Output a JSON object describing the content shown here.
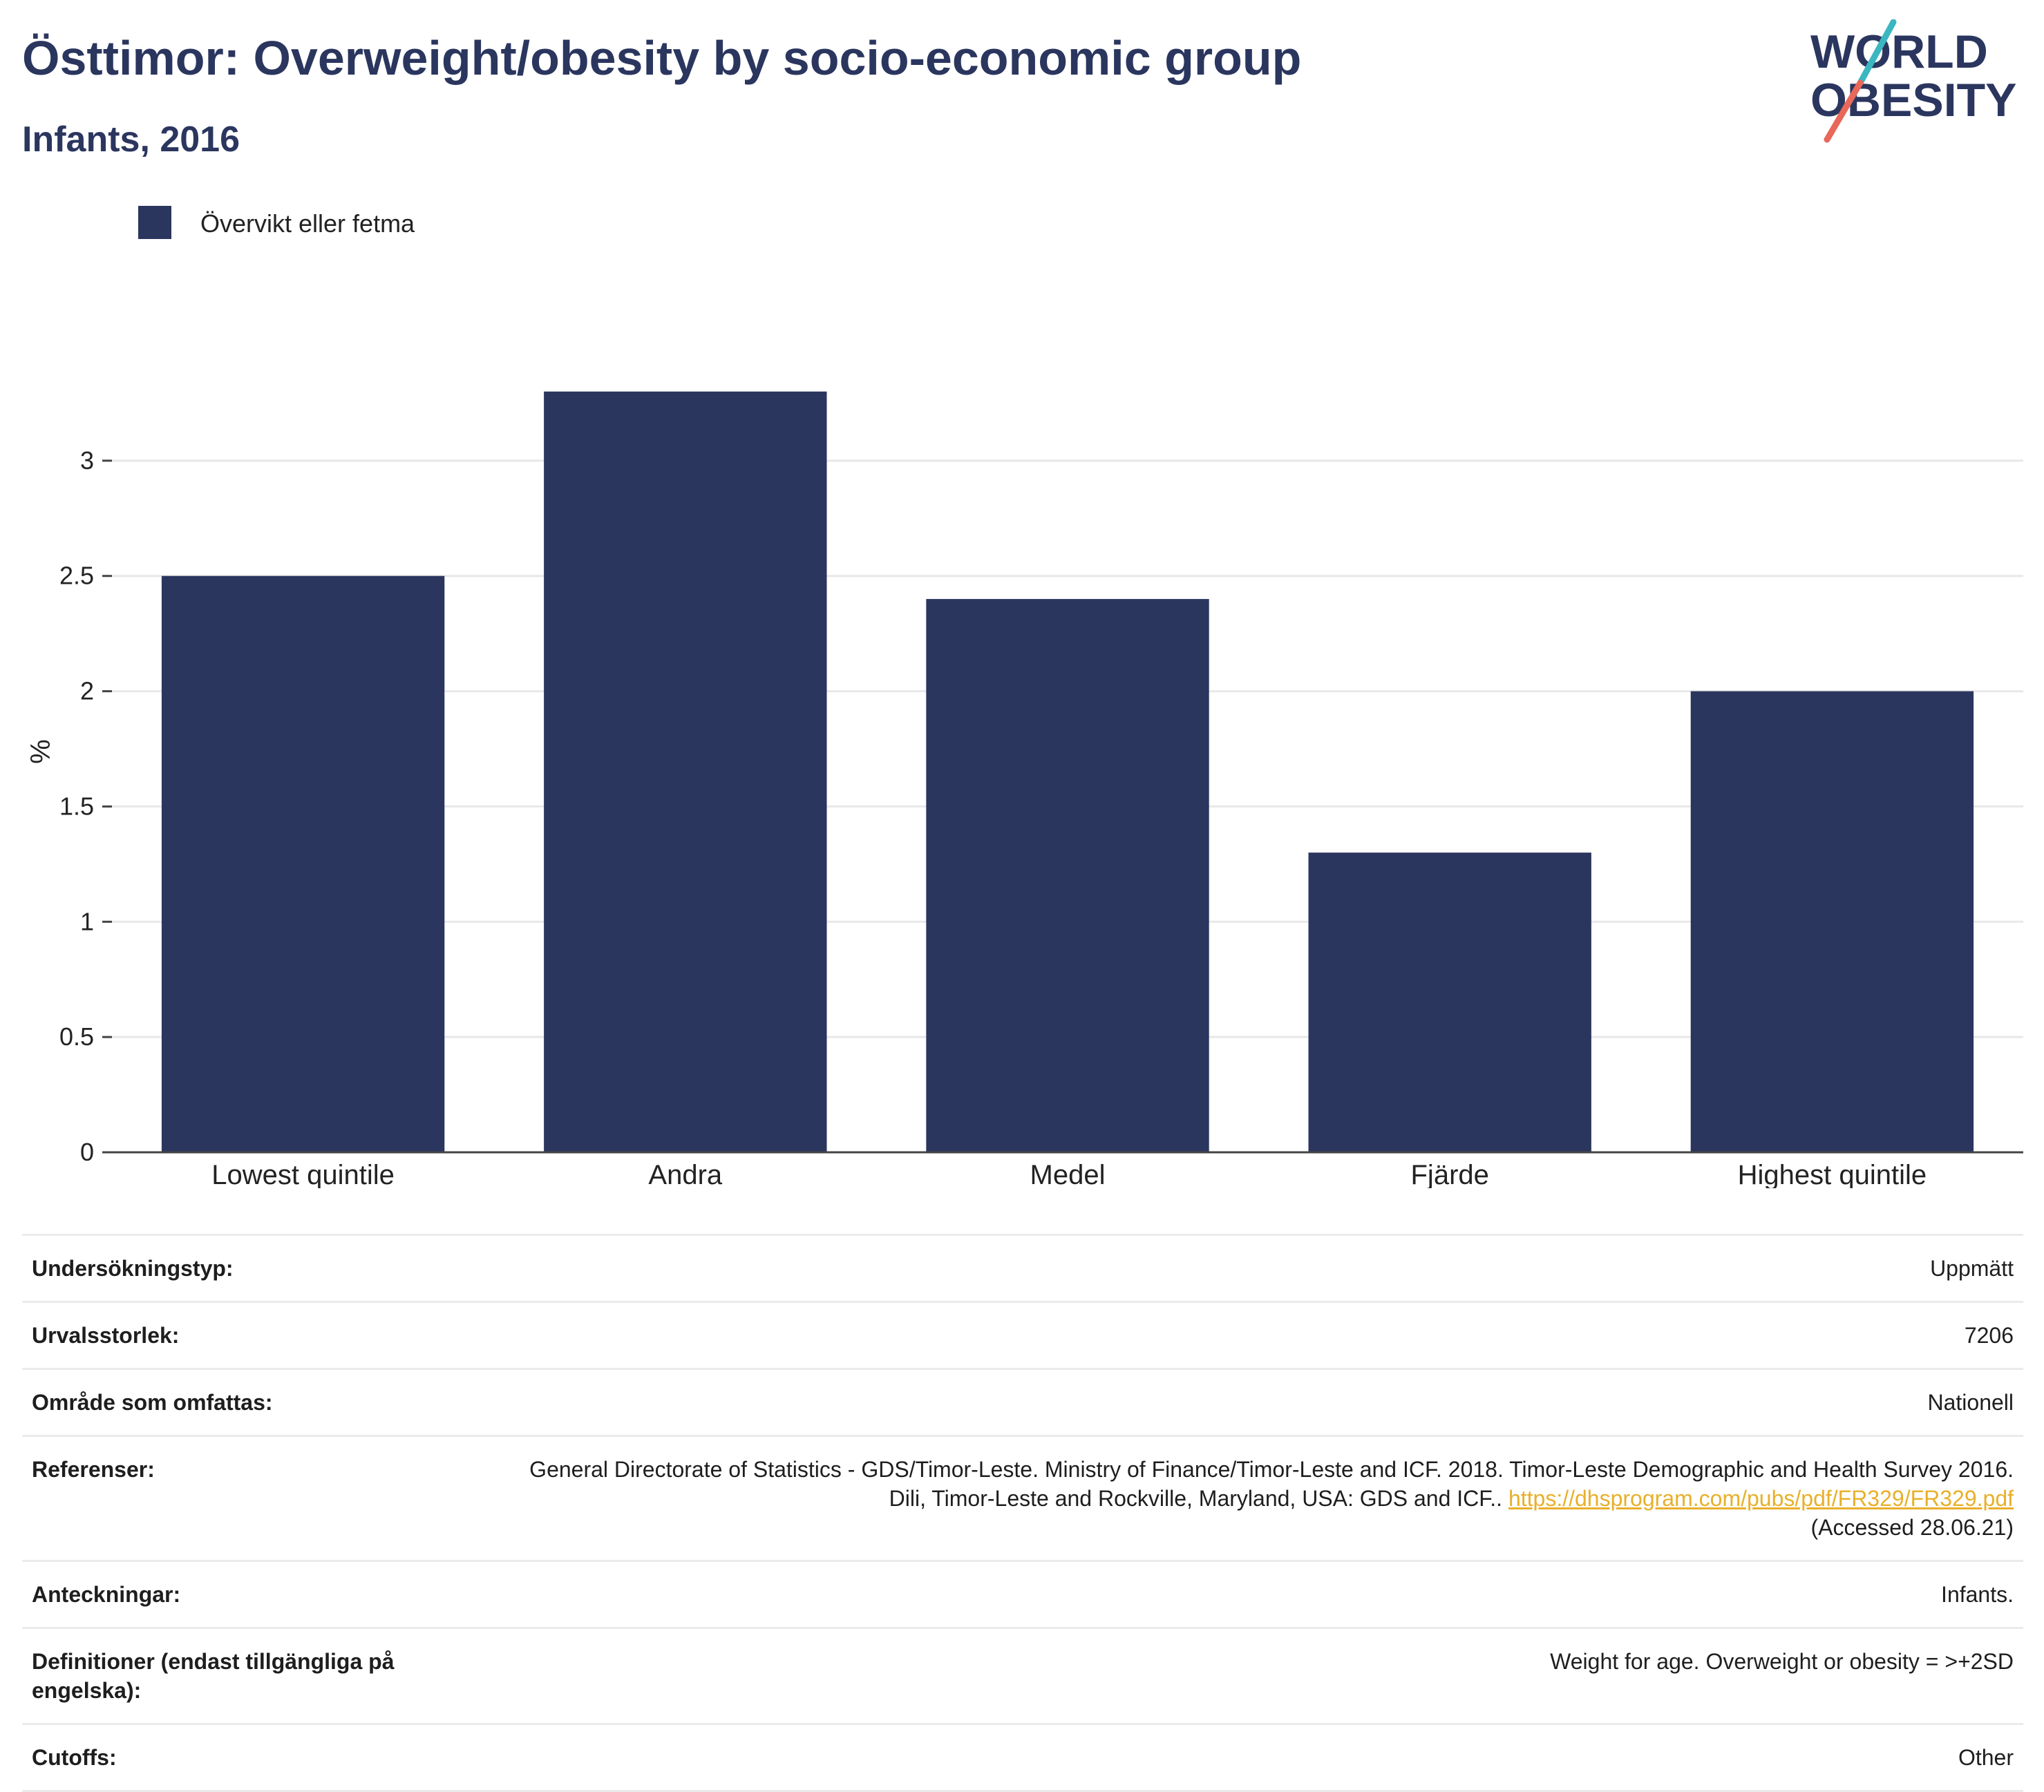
{
  "header": {
    "title": "Östtimor: Overweight/obesity by socio-economic group",
    "subtitle": "Infants, 2016"
  },
  "logo": {
    "line1": "WORLD",
    "line2": "OBESITY",
    "colors": {
      "text": "#2b365f",
      "slash_top": "#3bb7c1",
      "slash_bottom": "#e8685a"
    }
  },
  "chart_data": {
    "type": "bar",
    "categories": [
      "Lowest quintile",
      "Andra",
      "Medel",
      "Fjärde",
      "Highest quintile"
    ],
    "series": [
      {
        "name": "Övervikt eller fetma",
        "values": [
          2.5,
          3.3,
          2.4,
          1.3,
          2.0
        ],
        "color": "#2b365f"
      }
    ],
    "ylabel": "%",
    "ylim": [
      0,
      3.5
    ],
    "yticks": [
      0,
      0.5,
      1,
      1.5,
      2,
      2.5,
      3
    ],
    "ytick_labels": [
      "0",
      "0.5",
      "1",
      "1.5",
      "2",
      "2.5",
      "3"
    ],
    "grid": true,
    "legend": "top-left"
  },
  "meta": {
    "survey_type": {
      "label": "Undersökningstyp:",
      "value": "Uppmätt"
    },
    "sample_size": {
      "label": "Urvalsstorlek:",
      "value": "7206"
    },
    "coverage": {
      "label": "Område som omfattas:",
      "value": "Nationell"
    },
    "references": {
      "label": "Referenser:",
      "text": "General Directorate of Statistics - GDS/Timor-Leste. Ministry of Finance/Timor-Leste and ICF. 2018. Timor-Leste Demographic and Health Survey 2016. Dili, Timor-Leste and Rockville, Maryland, USA: GDS and ICF..",
      "link": "https://dhsprogram.com/pubs/pdf/FR329/FR329.pdf",
      "accessed": "(Accessed 28.06.21)"
    },
    "notes": {
      "label": "Anteckningar:",
      "value": "Infants."
    },
    "definitions": {
      "label": "Definitioner (endast tillgängliga på engelska):",
      "value": "Weight for age. Overweight or obesity = >+2SD"
    },
    "cutoffs": {
      "label": "Cutoffs:",
      "value": "Other"
    }
  }
}
